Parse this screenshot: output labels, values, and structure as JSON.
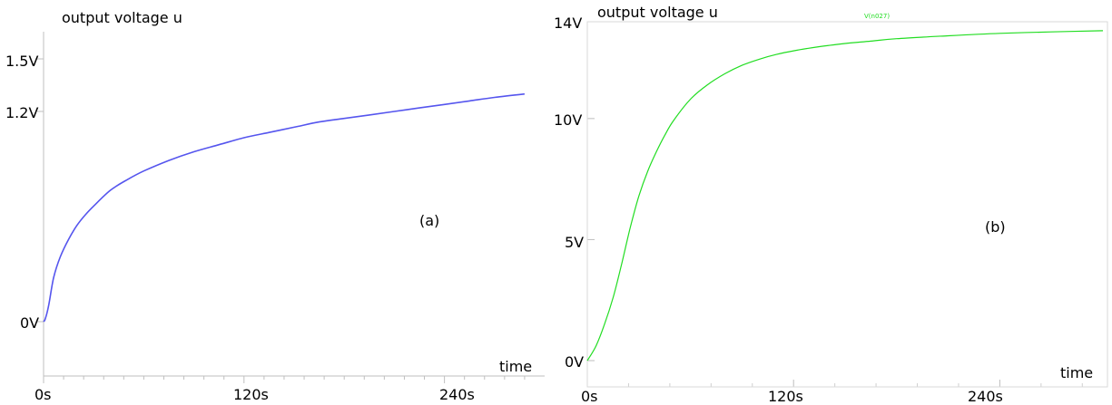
{
  "colors": {
    "curve_a": "#5555ee",
    "curve_b": "#22dd22",
    "axis": "#bfbfbf",
    "frame_b": "#d9d9d9"
  },
  "chart_data": [
    {
      "panel": "(a)",
      "type": "line",
      "title": "output voltage u",
      "xlabel": "time",
      "ylabel": "",
      "xlim": [
        0,
        300
      ],
      "ylim": [
        -0.15,
        1.6
      ],
      "x_ticks": [
        0,
        120,
        240
      ],
      "x_tick_labels": [
        "0s",
        "120s",
        "240s"
      ],
      "y_ticks": [
        0,
        1.2,
        1.5
      ],
      "y_tick_labels": [
        "0V",
        "1.2V",
        "1.5V"
      ],
      "grid": false,
      "series": [
        {
          "x": [
            0,
            1,
            3,
            6,
            10,
            15,
            20,
            25,
            30,
            40,
            50,
            60,
            75,
            90,
            105,
            120,
            135,
            150,
            165,
            180,
            195,
            210,
            225,
            240,
            255,
            270,
            288
          ],
          "y": [
            0.0,
            0.015,
            0.09,
            0.25,
            0.37,
            0.47,
            0.55,
            0.61,
            0.66,
            0.75,
            0.81,
            0.86,
            0.92,
            0.97,
            1.01,
            1.05,
            1.08,
            1.11,
            1.14,
            1.16,
            1.18,
            1.2,
            1.22,
            1.24,
            1.26,
            1.28,
            1.3
          ]
        }
      ]
    },
    {
      "panel": "(b)",
      "type": "line",
      "title": "output voltage u",
      "legend_text": "V(n027)",
      "xlabel": "time",
      "ylabel": "",
      "xlim": [
        0,
        300
      ],
      "ylim": [
        -0.7,
        14
      ],
      "x_ticks": [
        0,
        120,
        240
      ],
      "x_tick_labels": [
        "0s",
        "120s",
        "240s"
      ],
      "y_ticks": [
        0,
        5,
        10,
        14
      ],
      "y_tick_labels": [
        "0V",
        "5V",
        "10V",
        "14V"
      ],
      "grid": false,
      "series": [
        {
          "x": [
            0,
            5,
            10,
            15,
            20,
            25,
            30,
            35,
            40,
            45,
            50,
            60,
            70,
            80,
            90,
            100,
            110,
            120,
            135,
            150,
            165,
            180,
            210,
            240,
            270,
            300
          ],
          "y": [
            0.0,
            0.6,
            1.5,
            2.6,
            4.0,
            5.5,
            6.8,
            7.8,
            8.6,
            9.3,
            9.9,
            10.8,
            11.4,
            11.85,
            12.2,
            12.45,
            12.65,
            12.8,
            12.97,
            13.1,
            13.2,
            13.3,
            13.42,
            13.52,
            13.58,
            13.63
          ]
        }
      ]
    }
  ],
  "panels": {
    "a": {
      "title": "output voltage u",
      "xlabel": "time",
      "tag": "(a)",
      "x_tick_labels": [
        "0s",
        "120s",
        "240s"
      ],
      "y_tick_labels": [
        "0V",
        "1.2V",
        "1.5V"
      ]
    },
    "b": {
      "title": "output voltage u",
      "xlabel": "time",
      "tag": "(b)",
      "legend_text": "V(n027)",
      "x_tick_labels": [
        "0s",
        "120s",
        "240s"
      ],
      "y_tick_labels": [
        "0V",
        "5V",
        "10V",
        "14V"
      ]
    }
  }
}
